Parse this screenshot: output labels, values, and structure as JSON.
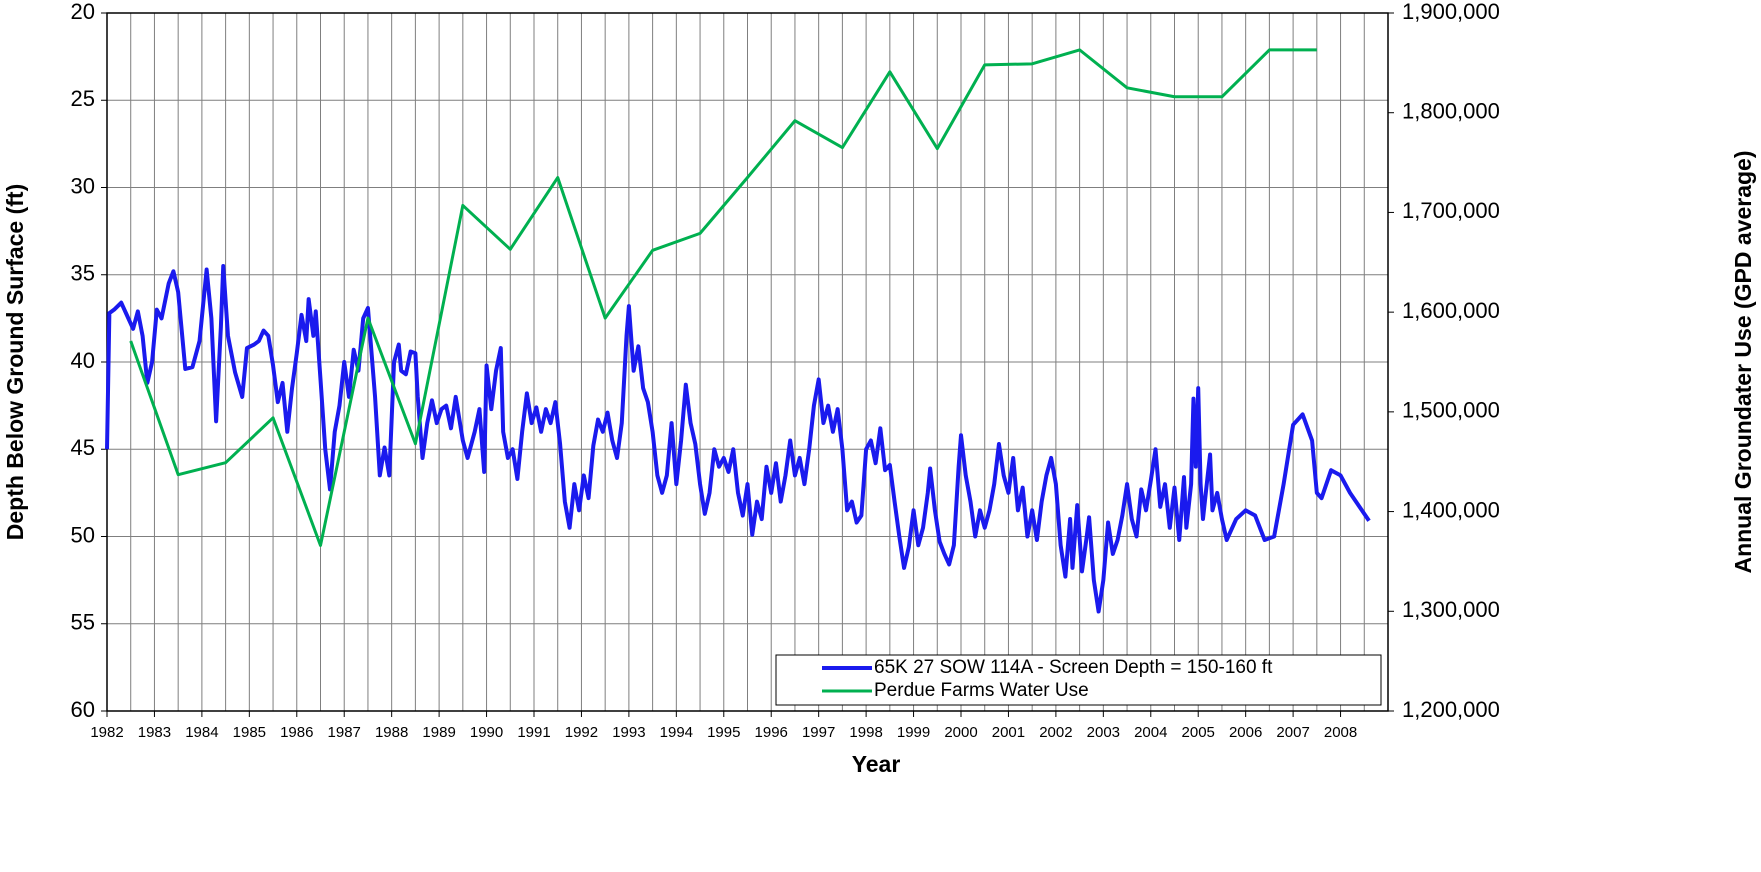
{
  "chart_data": {
    "type": "line",
    "x_label": "Year",
    "y_label": "Depth Below Ground Surface (ft)",
    "y2_label": "Annual Groundater Use (GPD average)",
    "xlim": [
      1982,
      2009
    ],
    "xticks": [
      1982,
      1983,
      1984,
      1985,
      1986,
      1987,
      1988,
      1989,
      1990,
      1991,
      1992,
      1993,
      1994,
      1995,
      1996,
      1997,
      1998,
      1999,
      2000,
      2001,
      2002,
      2003,
      2004,
      2005,
      2006,
      2007,
      2008
    ],
    "x_minor_gridlines": [
      1982.5,
      1983.5,
      1984.5,
      1985.5,
      1986.5,
      1987.5,
      1988.5,
      1989.5,
      1990.5,
      1991.5,
      1992.5,
      1993.5,
      1994.5,
      1995.5,
      1996.5,
      1997.5,
      1998.5,
      1999.5,
      2000.5,
      2001.5,
      2002.5,
      2003.5,
      2004.5,
      2005.5,
      2006.5,
      2007.5,
      2008.5
    ],
    "ylim": [
      20,
      60
    ],
    "y_reversed": true,
    "yticks": [
      20,
      25,
      30,
      35,
      40,
      45,
      50,
      55,
      60
    ],
    "y2lim": [
      1200000,
      1900000
    ],
    "y2ticks": [
      {
        "value": 1200000,
        "label": "1,200,000"
      },
      {
        "value": 1300000,
        "label": "1,300,000"
      },
      {
        "value": 1400000,
        "label": "1,400,000"
      },
      {
        "value": 1500000,
        "label": "1,500,000"
      },
      {
        "value": 1600000,
        "label": "1,600,000"
      },
      {
        "value": 1700000,
        "label": "1,700,000"
      },
      {
        "value": 1800000,
        "label": "1,800,000"
      },
      {
        "value": 1900000,
        "label": "1,900,000"
      }
    ],
    "grid": true,
    "legend": "lower right",
    "series": [
      {
        "name": "65K 27 SOW 114A - Screen Depth = 150-160 ft",
        "color": "#1a1aee",
        "axis": "y",
        "x": [
          1982.0,
          1982.05,
          1982.15,
          1982.3,
          1982.45,
          1982.55,
          1982.65,
          1982.75,
          1982.85,
          1982.95,
          1983.05,
          1983.15,
          1983.3,
          1983.4,
          1983.5,
          1983.65,
          1983.8,
          1983.95,
          1984.1,
          1984.2,
          1984.3,
          1984.4,
          1984.45,
          1984.55,
          1984.7,
          1984.85,
          1984.95,
          1985.1,
          1985.2,
          1985.3,
          1985.4,
          1985.5,
          1985.6,
          1985.7,
          1985.8,
          1985.9,
          1986.0,
          1986.1,
          1986.2,
          1986.25,
          1986.35,
          1986.4,
          1986.5,
          1986.6,
          1986.7,
          1986.8,
          1986.9,
          1987.0,
          1987.1,
          1987.2,
          1987.3,
          1987.4,
          1987.5,
          1987.55,
          1987.65,
          1987.75,
          1987.85,
          1987.95,
          1988.05,
          1988.15,
          1988.2,
          1988.3,
          1988.4,
          1988.5,
          1988.55,
          1988.65,
          1988.75,
          1988.85,
          1988.95,
          1989.05,
          1989.15,
          1989.25,
          1989.35,
          1989.5,
          1989.6,
          1989.75,
          1989.85,
          1989.95,
          1990.0,
          1990.1,
          1990.2,
          1990.3,
          1990.35,
          1990.45,
          1990.55,
          1990.65,
          1990.75,
          1990.85,
          1990.95,
          1991.05,
          1991.15,
          1991.25,
          1991.35,
          1991.45,
          1991.55,
          1991.65,
          1991.75,
          1991.85,
          1991.95,
          1992.05,
          1992.15,
          1992.25,
          1992.35,
          1992.45,
          1992.55,
          1992.65,
          1992.75,
          1992.85,
          1992.95,
          1993.0,
          1993.1,
          1993.2,
          1993.3,
          1993.4,
          1993.5,
          1993.6,
          1993.7,
          1993.8,
          1993.9,
          1994.0,
          1994.1,
          1994.2,
          1994.3,
          1994.4,
          1994.5,
          1994.6,
          1994.7,
          1994.8,
          1994.9,
          1995.0,
          1995.1,
          1995.2,
          1995.3,
          1995.4,
          1995.5,
          1995.6,
          1995.7,
          1995.8,
          1995.9,
          1996.0,
          1996.1,
          1996.2,
          1996.3,
          1996.4,
          1996.5,
          1996.6,
          1996.7,
          1996.8,
          1996.9,
          1997.0,
          1997.1,
          1997.2,
          1997.3,
          1997.4,
          1997.5,
          1997.6,
          1997.7,
          1997.8,
          1997.9,
          1998.0,
          1998.1,
          1998.2,
          1998.3,
          1998.4,
          1998.5,
          1998.6,
          1998.7,
          1998.8,
          1998.9,
          1999.0,
          1999.1,
          1999.2,
          1999.3,
          1999.35,
          1999.45,
          1999.55,
          1999.65,
          1999.75,
          1999.85,
          1999.95,
          2000.0,
          2000.1,
          2000.2,
          2000.3,
          2000.4,
          2000.5,
          2000.6,
          2000.7,
          2000.8,
          2000.9,
          2001.0,
          2001.1,
          2001.2,
          2001.3,
          2001.4,
          2001.5,
          2001.6,
          2001.7,
          2001.8,
          2001.9,
          2002.0,
          2002.1,
          2002.2,
          2002.3,
          2002.35,
          2002.45,
          2002.55,
          2002.65,
          2002.7,
          2002.8,
          2002.9,
          2003.0,
          2003.1,
          2003.2,
          2003.3,
          2003.4,
          2003.5,
          2003.6,
          2003.7,
          2003.8,
          2003.9,
          2004.0,
          2004.1,
          2004.2,
          2004.3,
          2004.4,
          2004.5,
          2004.6,
          2004.7,
          2004.75,
          2004.85,
          2004.9,
          2004.95,
          2005.0,
          2005.05,
          2005.1,
          2005.2,
          2005.25,
          2005.3,
          2005.4,
          2005.5,
          2005.6,
          2005.8,
          2006.0,
          2006.2,
          2006.4,
          2006.6,
          2006.8,
          2007.0,
          2007.2,
          2007.4,
          2007.5,
          2007.6,
          2007.8,
          2008.0,
          2008.2,
          2008.6
        ],
        "values": [
          45,
          37.2,
          37,
          36.6,
          37.5,
          38.1,
          37.1,
          38.5,
          41.2,
          40,
          37,
          37.5,
          35.5,
          34.8,
          36,
          40.4,
          40.3,
          38.8,
          34.7,
          37.5,
          43.4,
          38,
          34.5,
          38.5,
          40.6,
          42,
          39.2,
          39,
          38.8,
          38.2,
          38.5,
          40.2,
          42.3,
          41.2,
          44,
          41.5,
          39.5,
          37.3,
          38.8,
          36.4,
          38.5,
          37.1,
          41,
          45,
          47.3,
          44,
          42.5,
          40,
          42,
          39.3,
          40.5,
          37.5,
          36.9,
          38.6,
          42,
          46.5,
          44.9,
          46.5,
          40,
          39,
          40.5,
          40.7,
          39.4,
          39.5,
          42,
          45.5,
          43.5,
          42.2,
          43.5,
          42.7,
          42.5,
          43.8,
          42,
          44.5,
          45.5,
          44,
          42.7,
          46.3,
          40.2,
          42.7,
          40.5,
          39.2,
          44,
          45.5,
          45,
          46.7,
          44,
          41.8,
          43.5,
          42.6,
          44,
          42.7,
          43.5,
          42.3,
          44.7,
          48,
          49.5,
          47,
          48.5,
          46.5,
          47.8,
          44.8,
          43.3,
          44,
          42.9,
          44.5,
          45.5,
          43.5,
          38.5,
          36.8,
          40.5,
          39.1,
          41.5,
          42.3,
          44,
          46.5,
          47.5,
          46.5,
          43.5,
          47,
          44.5,
          41.3,
          43.5,
          44.7,
          47,
          48.7,
          47.5,
          45,
          46,
          45.5,
          46.3,
          45,
          47.5,
          48.8,
          47,
          49.9,
          48,
          49,
          46,
          47.5,
          45.8,
          48,
          46.5,
          44.5,
          46.5,
          45.5,
          47,
          45,
          42.5,
          41,
          43.5,
          42.5,
          44,
          42.7,
          45,
          48.5,
          48,
          49.2,
          48.8,
          45,
          44.5,
          45.8,
          43.8,
          46.2,
          45.9,
          48,
          50,
          51.8,
          50.6,
          48.5,
          50.5,
          49.5,
          47.5,
          46.1,
          48.5,
          50.3,
          51,
          51.6,
          50.5,
          46,
          44.2,
          46.5,
          48,
          50,
          48.5,
          49.5,
          48.5,
          47,
          44.7,
          46.5,
          47.5,
          45.5,
          48.5,
          47.2,
          50,
          48.5,
          50.2,
          48,
          46.5,
          45.5,
          47,
          50.5,
          52.3,
          49,
          51.8,
          48.2,
          52,
          50,
          48.9,
          52.5,
          54.3,
          52.5,
          49.2,
          51,
          50.2,
          48.8,
          47,
          49,
          50,
          47.3,
          48.5,
          46.8,
          45,
          48.3,
          47,
          49.5,
          47.2,
          50.2,
          46.6,
          49.5,
          47,
          42.1,
          46,
          41.5,
          47,
          49,
          46.5,
          45.3,
          48.5,
          47.5,
          49,
          50.2,
          49,
          48.5,
          48.8,
          50.2,
          50,
          47,
          43.6,
          43,
          44.5,
          47.5,
          47.8,
          46.2,
          46.5,
          47.5,
          49.1
        ]
      },
      {
        "name": "Perdue Farms Water Use",
        "color": "#00b050",
        "axis": "y2",
        "x": [
          1982.5,
          1983.5,
          1984.5,
          1985.5,
          1986.5,
          1987.5,
          1988.5,
          1989.5,
          1990.5,
          1991.5,
          1992.5,
          1993.5,
          1994.5,
          1995.5,
          1996.5,
          1997.5,
          1998.5,
          1999.5,
          2000.5,
          2001.5,
          2002.5,
          2003.5,
          2004.5,
          2005.5,
          2006.5,
          2007.5
        ],
        "values": [
          1571000,
          1437000,
          1449000,
          1494000,
          1366000,
          1594000,
          1468000,
          1707000,
          1663000,
          1735000,
          1594000,
          1662000,
          1679000,
          1735000,
          1792000,
          1765000,
          1841000,
          1764000,
          1848000,
          1849000,
          1863000,
          1825000,
          1816000,
          1816000,
          1863000,
          1863000
        ]
      }
    ]
  }
}
